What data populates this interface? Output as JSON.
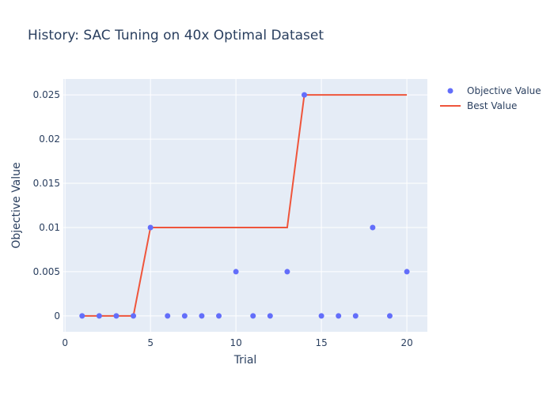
{
  "chart_data": {
    "type": "scatter",
    "title": "History: SAC Tuning on 40x Optimal Dataset",
    "xlabel": "Trial",
    "ylabel": "Objective Value",
    "xlim": [
      -0.1,
      21.2
    ],
    "ylim": [
      -0.0018,
      0.0268
    ],
    "x_ticks": [
      0,
      5,
      10,
      15,
      20
    ],
    "x_tick_labels": [
      "0",
      "5",
      "10",
      "15",
      "20"
    ],
    "y_ticks": [
      0,
      0.005,
      0.01,
      0.015,
      0.02,
      0.025
    ],
    "y_tick_labels": [
      "0",
      "0.005",
      "0.01",
      "0.015",
      "0.02",
      "0.025"
    ],
    "grid": true,
    "legend_position": "top-right",
    "series": [
      {
        "name": "Objective Value",
        "mode": "markers",
        "color": "#636efa",
        "x": [
          1,
          2,
          3,
          4,
          5,
          6,
          7,
          8,
          9,
          10,
          11,
          12,
          13,
          14,
          15,
          16,
          17,
          18,
          19,
          20
        ],
        "y": [
          0,
          0,
          0,
          0,
          0.01,
          0,
          0,
          0,
          0,
          0.005,
          0,
          0,
          0.005,
          0.025,
          0,
          0,
          0,
          0.01,
          0,
          0.005
        ]
      },
      {
        "name": "Best Value",
        "mode": "lines",
        "color": "#ef553b",
        "x": [
          1,
          2,
          3,
          4,
          5,
          6,
          7,
          8,
          9,
          10,
          11,
          12,
          13,
          14,
          15,
          16,
          17,
          18,
          19,
          20
        ],
        "y": [
          0,
          0,
          0,
          0,
          0.01,
          0.01,
          0.01,
          0.01,
          0.01,
          0.01,
          0.01,
          0.01,
          0.01,
          0.025,
          0.025,
          0.025,
          0.025,
          0.025,
          0.025,
          0.025
        ]
      }
    ],
    "plot_background": "#e5ecf6",
    "grid_color": "#ffffff"
  }
}
